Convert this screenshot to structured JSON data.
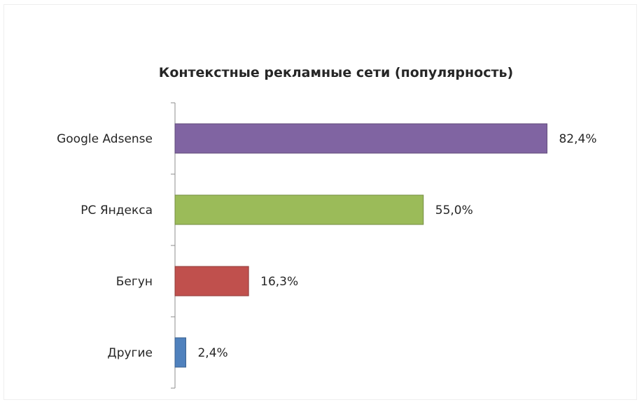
{
  "chart_data": {
    "type": "bar",
    "orientation": "horizontal",
    "title": "Контекстные рекламные сети (популярность)",
    "categories": [
      "Google Adsense",
      "РС Яндекса",
      "Бегун",
      "Другие"
    ],
    "values": [
      82.4,
      55.0,
      16.3,
      2.4
    ],
    "value_labels": [
      "82,4%",
      "55,0%",
      "16,3%",
      "2,4%"
    ],
    "colors": [
      "#8064a2",
      "#9bbb59",
      "#c0504d",
      "#4f81bd"
    ],
    "xlim": [
      0,
      100
    ],
    "grid": false,
    "legend": "none",
    "xlabel": "",
    "ylabel": ""
  }
}
